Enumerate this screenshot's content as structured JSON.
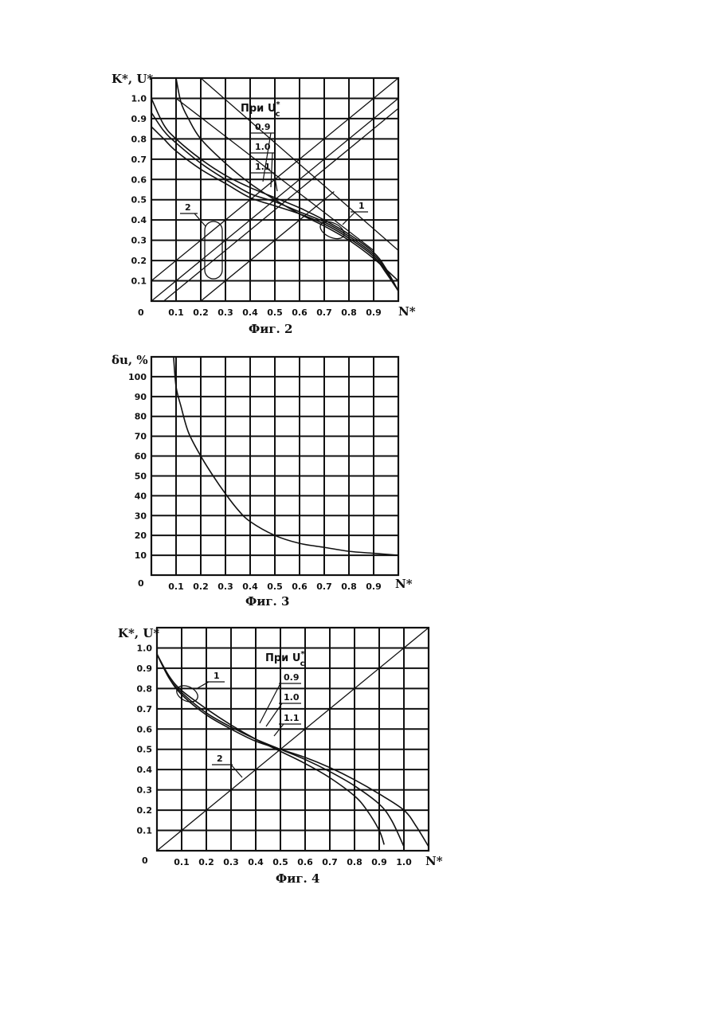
{
  "chart_data": [
    {
      "type": "line",
      "ylabel": "K*, U*",
      "xlabel": "N*",
      "caption": "Фиг. 2",
      "legend_title": "При U",
      "legend_sup": "*",
      "legend_sub": "с",
      "x_ticks": [
        "0.1",
        "0.2",
        "0.3",
        "0.4",
        "0.5",
        "0.6",
        "0.7",
        "0.8",
        "0.9"
      ],
      "y_ticks": [
        "0.1",
        "0.2",
        "0.3",
        "0.4",
        "0.5",
        "0.6",
        "0.7",
        "0.8",
        "0.9",
        "1.0"
      ],
      "origin_label": "0",
      "xlim": [
        0,
        1.0
      ],
      "ylim": [
        0,
        1.1
      ],
      "grid": true,
      "series": [
        {
          "name": "0.9",
          "x": [
            0.0,
            0.05,
            0.1,
            0.2,
            0.3,
            0.4,
            0.5,
            0.6,
            0.7,
            0.8,
            0.9,
            0.95,
            1.0
          ],
          "y": [
            1.0,
            0.87,
            0.8,
            0.7,
            0.62,
            0.56,
            0.51,
            0.46,
            0.4,
            0.33,
            0.24,
            0.16,
            0.05
          ]
        },
        {
          "name": "1.0",
          "x": [
            0.0,
            0.05,
            0.1,
            0.2,
            0.3,
            0.4,
            0.5,
            0.6,
            0.7,
            0.8,
            0.9,
            0.95,
            1.0
          ],
          "y": [
            0.93,
            0.84,
            0.78,
            0.68,
            0.6,
            0.53,
            0.49,
            0.44,
            0.39,
            0.32,
            0.23,
            0.15,
            0.05
          ]
        },
        {
          "name": "1.1",
          "x": [
            0.0,
            0.05,
            0.1,
            0.2,
            0.3,
            0.4,
            0.5,
            0.6,
            0.7,
            0.8,
            0.9,
            0.95,
            1.0
          ],
          "y": [
            0.86,
            0.8,
            0.74,
            0.65,
            0.58,
            0.51,
            0.47,
            0.43,
            0.38,
            0.31,
            0.22,
            0.14,
            0.05
          ]
        },
        {
          "name": "",
          "x": [
            0.1,
            0.12,
            0.15,
            0.2,
            0.3,
            0.4,
            0.5,
            0.6,
            0.7,
            0.8,
            0.9,
            1.0
          ],
          "y": [
            1.1,
            0.98,
            0.9,
            0.8,
            0.68,
            0.58,
            0.5,
            0.43,
            0.37,
            0.3,
            0.21,
            0.1
          ]
        }
      ],
      "diagonals": [
        {
          "x": [
            0,
            1.0
          ],
          "y": [
            0.1,
            1.1
          ]
        },
        {
          "x": [
            0,
            1.0
          ],
          "y": [
            0.0,
            1.0
          ]
        },
        {
          "x": [
            0.05,
            1.0
          ],
          "y": [
            0.0,
            0.95
          ]
        },
        {
          "x": [
            0.2,
            0.74
          ],
          "y": [
            0.0,
            0.54
          ]
        },
        {
          "x": [
            0.1,
            0.9
          ],
          "y": [
            1.0,
            0.25
          ]
        },
        {
          "x": [
            0.2,
            1.0
          ],
          "y": [
            1.1,
            0.25
          ]
        }
      ],
      "callouts": [
        "1",
        "2"
      ]
    },
    {
      "type": "line",
      "ylabel": "δu, %",
      "xlabel": "N*",
      "caption": "Фиг. 3",
      "x_ticks": [
        "0.1",
        "0.2",
        "0.3",
        "0.4",
        "0.5",
        "0.6",
        "0.7",
        "0.8",
        "0.9"
      ],
      "y_ticks": [
        "10",
        "20",
        "30",
        "40",
        "50",
        "60",
        "70",
        "80",
        "90",
        "100"
      ],
      "origin_label": "0",
      "xlim": [
        0,
        1.0
      ],
      "ylim": [
        0,
        110
      ],
      "grid": true,
      "series": [
        {
          "name": "",
          "x": [
            0.09,
            0.1,
            0.12,
            0.15,
            0.2,
            0.25,
            0.3,
            0.35,
            0.4,
            0.5,
            0.6,
            0.7,
            0.8,
            0.9,
            1.0
          ],
          "y": [
            110,
            95,
            85,
            72,
            60,
            50,
            41,
            33,
            27,
            20,
            16,
            14,
            12,
            11,
            10
          ]
        }
      ]
    },
    {
      "type": "line",
      "ylabel": "K*, U*",
      "xlabel": "N*",
      "caption": "Фиг. 4",
      "legend_title": "При U",
      "legend_sup": "*",
      "legend_sub": "с",
      "x_ticks": [
        "0.1",
        "0.2",
        "0.3",
        "0.4",
        "0.5",
        "0.6",
        "0.7",
        "0.8",
        "0.9",
        "1.0"
      ],
      "y_ticks": [
        "0.1",
        "0.2",
        "0.3",
        "0.4",
        "0.5",
        "0.6",
        "0.7",
        "0.8",
        "0.9",
        "1.0"
      ],
      "origin_label": "0",
      "xlim": [
        0,
        1.1
      ],
      "ylim": [
        0,
        1.1
      ],
      "grid": true,
      "series": [
        {
          "name": "0.9",
          "x": [
            0.0,
            0.05,
            0.1,
            0.2,
            0.3,
            0.4,
            0.5,
            0.6,
            0.7,
            0.8,
            0.85,
            0.9,
            0.92
          ],
          "y": [
            0.97,
            0.86,
            0.79,
            0.7,
            0.62,
            0.55,
            0.49,
            0.43,
            0.36,
            0.27,
            0.2,
            0.1,
            0.03
          ]
        },
        {
          "name": "1.0",
          "x": [
            0.0,
            0.05,
            0.1,
            0.2,
            0.3,
            0.4,
            0.5,
            0.6,
            0.7,
            0.8,
            0.9,
            0.95,
            1.0
          ],
          "y": [
            0.97,
            0.85,
            0.78,
            0.68,
            0.61,
            0.55,
            0.5,
            0.45,
            0.39,
            0.32,
            0.23,
            0.15,
            0.02
          ]
        },
        {
          "name": "1.1",
          "x": [
            0.0,
            0.05,
            0.1,
            0.2,
            0.3,
            0.4,
            0.5,
            0.6,
            0.7,
            0.8,
            0.9,
            1.0,
            1.05,
            1.1
          ],
          "y": [
            0.97,
            0.85,
            0.77,
            0.67,
            0.6,
            0.54,
            0.5,
            0.46,
            0.41,
            0.35,
            0.28,
            0.2,
            0.12,
            0.02
          ]
        }
      ],
      "diagonals": [
        {
          "x": [
            0,
            1.1
          ],
          "y": [
            0,
            1.1
          ]
        }
      ],
      "callouts": [
        "1",
        "2"
      ]
    }
  ]
}
